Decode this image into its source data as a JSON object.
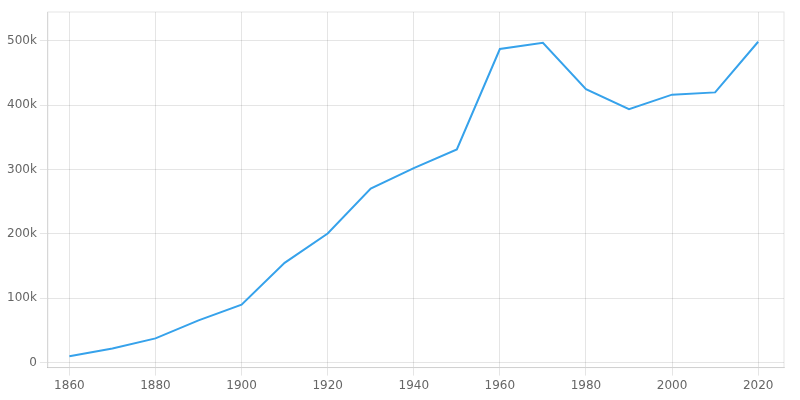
{
  "chart_data": {
    "type": "line",
    "x": [
      1860,
      1870,
      1880,
      1890,
      1900,
      1910,
      1920,
      1930,
      1940,
      1950,
      1960,
      1970,
      1980,
      1990,
      2000,
      2010,
      2020
    ],
    "values": [
      9554,
      21789,
      37409,
      65533,
      89872,
      154839,
      200616,
      270366,
      302288,
      331314,
      487455,
      496973,
      425022,
      394017,
      416474,
      420003,
      498715
    ],
    "xlim": [
      1855,
      2026
    ],
    "ylim": [
      -8000,
      545000
    ],
    "xticks": [
      1860,
      1880,
      1900,
      1920,
      1940,
      1960,
      1980,
      2000,
      2020
    ],
    "yticks": [
      0,
      {
        "value": 100000,
        "label": "100k"
      },
      {
        "value": 200000,
        "label": "200k"
      },
      {
        "value": 300000,
        "label": "300k"
      },
      {
        "value": 400000,
        "label": "400k"
      },
      {
        "value": 500000,
        "label": "500k"
      }
    ],
    "grid": true
  }
}
